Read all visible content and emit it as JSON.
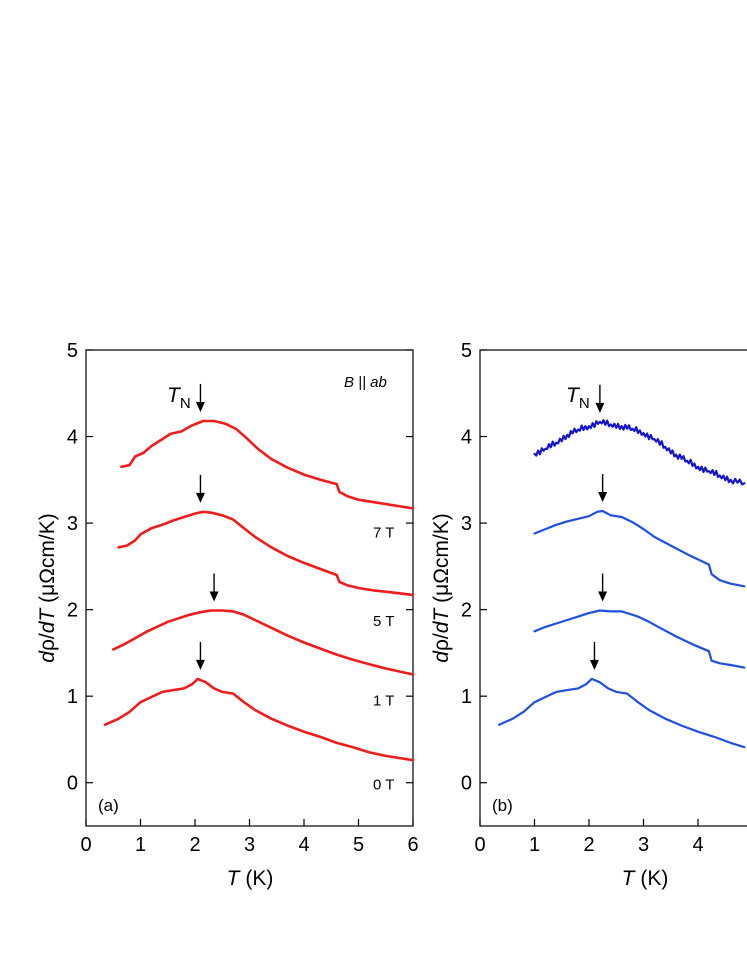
{
  "chart_data": [
    {
      "type": "line",
      "panel_tag": "(a)",
      "xlabel": "T  (K)",
      "ylabel": "dρ/dT  (μΩcm/K)",
      "xlim": [
        0,
        6
      ],
      "ylim": [
        -0.5,
        5
      ],
      "x_ticks": [
        "0",
        "1",
        "2",
        "3",
        "4",
        "5",
        "6"
      ],
      "y_ticks": [
        "0",
        "1",
        "2",
        "3",
        "4",
        "5"
      ],
      "annotation": "B || ab",
      "tn_label": "T",
      "tn_sub": "N",
      "color": "#ee1c1c",
      "series": [
        {
          "name": "0 T",
          "tn": 2.1,
          "points": [
            [
              0.35,
              0.67
            ],
            [
              0.6,
              0.74
            ],
            [
              0.8,
              0.82
            ],
            [
              1.0,
              0.93
            ],
            [
              1.2,
              0.99
            ],
            [
              1.4,
              1.05
            ],
            [
              1.6,
              1.07
            ],
            [
              1.8,
              1.09
            ],
            [
              1.95,
              1.14
            ],
            [
              2.05,
              1.2
            ],
            [
              2.2,
              1.16
            ],
            [
              2.35,
              1.09
            ],
            [
              2.5,
              1.05
            ],
            [
              2.7,
              1.03
            ],
            [
              2.9,
              0.93
            ],
            [
              3.1,
              0.84
            ],
            [
              3.4,
              0.74
            ],
            [
              3.7,
              0.66
            ],
            [
              4.0,
              0.59
            ],
            [
              4.3,
              0.53
            ],
            [
              4.6,
              0.46
            ],
            [
              4.9,
              0.41
            ],
            [
              5.2,
              0.35
            ],
            [
              5.5,
              0.31
            ],
            [
              6.0,
              0.26
            ]
          ]
        },
        {
          "name": "1 T",
          "tn": 2.35,
          "points": [
            [
              0.5,
              1.54
            ],
            [
              0.7,
              1.6
            ],
            [
              0.9,
              1.67
            ],
            [
              1.1,
              1.74
            ],
            [
              1.3,
              1.8
            ],
            [
              1.5,
              1.86
            ],
            [
              1.7,
              1.9
            ],
            [
              1.9,
              1.94
            ],
            [
              2.1,
              1.97
            ],
            [
              2.3,
              1.99
            ],
            [
              2.5,
              1.99
            ],
            [
              2.7,
              1.98
            ],
            [
              2.9,
              1.94
            ],
            [
              3.1,
              1.88
            ],
            [
              3.4,
              1.79
            ],
            [
              3.7,
              1.7
            ],
            [
              4.0,
              1.62
            ],
            [
              4.3,
              1.55
            ],
            [
              4.6,
              1.48
            ],
            [
              4.9,
              1.42
            ],
            [
              5.2,
              1.37
            ],
            [
              5.5,
              1.32
            ],
            [
              6.0,
              1.25
            ]
          ]
        },
        {
          "name": "5 T",
          "tn": 2.1,
          "points": [
            [
              0.6,
              2.72
            ],
            [
              0.75,
              2.74
            ],
            [
              0.9,
              2.8
            ],
            [
              1.0,
              2.87
            ],
            [
              1.2,
              2.94
            ],
            [
              1.4,
              2.98
            ],
            [
              1.6,
              3.03
            ],
            [
              1.8,
              3.07
            ],
            [
              2.0,
              3.11
            ],
            [
              2.15,
              3.13
            ],
            [
              2.3,
              3.12
            ],
            [
              2.5,
              3.09
            ],
            [
              2.7,
              3.04
            ],
            [
              2.9,
              2.94
            ],
            [
              3.1,
              2.84
            ],
            [
              3.4,
              2.72
            ],
            [
              3.7,
              2.62
            ],
            [
              4.0,
              2.54
            ],
            [
              4.3,
              2.47
            ],
            [
              4.6,
              2.4
            ],
            [
              4.65,
              2.32
            ],
            [
              4.8,
              2.28
            ],
            [
              5.0,
              2.25
            ],
            [
              5.3,
              2.22
            ],
            [
              5.6,
              2.2
            ],
            [
              6.0,
              2.17
            ]
          ]
        },
        {
          "name": "7 T",
          "tn": 2.1,
          "points": [
            [
              0.65,
              3.65
            ],
            [
              0.8,
              3.67
            ],
            [
              0.9,
              3.77
            ],
            [
              1.05,
              3.81
            ],
            [
              1.2,
              3.89
            ],
            [
              1.4,
              3.97
            ],
            [
              1.55,
              4.03
            ],
            [
              1.75,
              4.06
            ],
            [
              1.95,
              4.13
            ],
            [
              2.15,
              4.18
            ],
            [
              2.35,
              4.18
            ],
            [
              2.55,
              4.15
            ],
            [
              2.75,
              4.09
            ],
            [
              2.95,
              3.98
            ],
            [
              3.15,
              3.86
            ],
            [
              3.4,
              3.74
            ],
            [
              3.7,
              3.64
            ],
            [
              4.0,
              3.56
            ],
            [
              4.3,
              3.5
            ],
            [
              4.6,
              3.45
            ],
            [
              4.65,
              3.36
            ],
            [
              4.8,
              3.31
            ],
            [
              5.0,
              3.27
            ],
            [
              5.4,
              3.23
            ],
            [
              6.0,
              3.17
            ]
          ]
        }
      ]
    },
    {
      "type": "line",
      "panel_tag": "(b)",
      "xlabel": "T  (K)",
      "ylabel": "dρ/dT  (μΩcm/K)",
      "xlim": [
        0,
        4.85
      ],
      "ylim": [
        -0.5,
        5
      ],
      "x_ticks": [
        "0",
        "1",
        "2",
        "3",
        "4"
      ],
      "y_ticks": [
        "0",
        "1",
        "2",
        "3",
        "4",
        "5"
      ],
      "tn_label": "T",
      "tn_sub": "N",
      "series": [
        {
          "color": "#1e4fe0",
          "tn": 2.1,
          "points": [
            [
              0.35,
              0.67
            ],
            [
              0.6,
              0.74
            ],
            [
              0.8,
              0.82
            ],
            [
              1.0,
              0.93
            ],
            [
              1.2,
              0.99
            ],
            [
              1.4,
              1.05
            ],
            [
              1.6,
              1.07
            ],
            [
              1.8,
              1.09
            ],
            [
              1.95,
              1.14
            ],
            [
              2.05,
              1.2
            ],
            [
              2.2,
              1.16
            ],
            [
              2.35,
              1.09
            ],
            [
              2.5,
              1.05
            ],
            [
              2.7,
              1.03
            ],
            [
              2.9,
              0.93
            ],
            [
              3.1,
              0.84
            ],
            [
              3.4,
              0.74
            ],
            [
              3.7,
              0.66
            ],
            [
              4.0,
              0.59
            ],
            [
              4.3,
              0.53
            ],
            [
              4.6,
              0.46
            ],
            [
              4.85,
              0.41
            ]
          ]
        },
        {
          "color": "#1e4fe0",
          "tn": 2.25,
          "points": [
            [
              1.0,
              1.75
            ],
            [
              1.2,
              1.8
            ],
            [
              1.4,
              1.84
            ],
            [
              1.6,
              1.88
            ],
            [
              1.8,
              1.92
            ],
            [
              2.0,
              1.96
            ],
            [
              2.2,
              1.99
            ],
            [
              2.4,
              1.98
            ],
            [
              2.6,
              1.98
            ],
            [
              2.75,
              1.95
            ],
            [
              2.9,
              1.92
            ],
            [
              3.1,
              1.86
            ],
            [
              3.3,
              1.79
            ],
            [
              3.6,
              1.69
            ],
            [
              3.9,
              1.6
            ],
            [
              4.2,
              1.52
            ],
            [
              4.25,
              1.41
            ],
            [
              4.4,
              1.38
            ],
            [
              4.6,
              1.36
            ],
            [
              4.85,
              1.33
            ]
          ]
        },
        {
          "color": "#1e4fe0",
          "tn": 2.25,
          "points": [
            [
              1.0,
              2.88
            ],
            [
              1.2,
              2.93
            ],
            [
              1.4,
              2.98
            ],
            [
              1.6,
              3.02
            ],
            [
              1.8,
              3.05
            ],
            [
              2.0,
              3.08
            ],
            [
              2.15,
              3.13
            ],
            [
              2.25,
              3.14
            ],
            [
              2.4,
              3.09
            ],
            [
              2.6,
              3.07
            ],
            [
              2.8,
              3.01
            ],
            [
              3.0,
              2.93
            ],
            [
              3.2,
              2.84
            ],
            [
              3.5,
              2.74
            ],
            [
              3.8,
              2.64
            ],
            [
              4.1,
              2.55
            ],
            [
              4.2,
              2.52
            ],
            [
              4.25,
              2.41
            ],
            [
              4.4,
              2.34
            ],
            [
              4.6,
              2.3
            ],
            [
              4.85,
              2.27
            ]
          ]
        },
        {
          "color": "#1515cc",
          "tn": 2.2,
          "noisy": true,
          "points": [
            [
              1.0,
              3.8
            ],
            [
              1.2,
              3.86
            ],
            [
              1.4,
              3.93
            ],
            [
              1.6,
              4.02
            ],
            [
              1.8,
              4.08
            ],
            [
              2.0,
              4.12
            ],
            [
              2.2,
              4.17
            ],
            [
              2.4,
              4.14
            ],
            [
              2.6,
              4.12
            ],
            [
              2.8,
              4.09
            ],
            [
              3.0,
              4.04
            ],
            [
              3.2,
              3.97
            ],
            [
              3.4,
              3.88
            ],
            [
              3.6,
              3.79
            ],
            [
              3.8,
              3.72
            ],
            [
              4.0,
              3.65
            ],
            [
              4.2,
              3.6
            ],
            [
              4.4,
              3.55
            ],
            [
              4.6,
              3.5
            ],
            [
              4.85,
              3.46
            ]
          ]
        }
      ]
    }
  ]
}
